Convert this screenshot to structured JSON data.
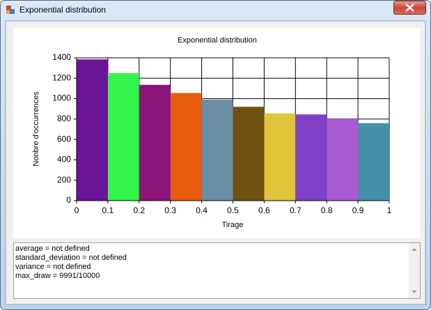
{
  "window": {
    "title": "Exponential distribution"
  },
  "chart_data": {
    "type": "histogram",
    "title": "Exponential distribution",
    "x_label": "Tirage",
    "y_label": "Nonbre d'occurrences",
    "bins": [
      0,
      0.1,
      0.2,
      0.3,
      0.4,
      0.5,
      0.6,
      0.7,
      0.8,
      0.9,
      1
    ],
    "values": [
      1385,
      1250,
      1135,
      1055,
      990,
      920,
      855,
      845,
      800,
      760
    ],
    "colors": [
      "#6a1597",
      "#33f54a",
      "#8b157a",
      "#e85c0f",
      "#6a8ea3",
      "#6e5210",
      "#e0c43a",
      "#8040c8",
      "#a95ad2",
      "#4590a8"
    ],
    "xlim": [
      0,
      1
    ],
    "ylim": [
      0,
      1400
    ],
    "xticks": [
      0,
      0.1,
      0.2,
      0.3,
      0.4,
      0.5,
      0.6,
      0.7,
      0.8,
      0.9,
      1
    ],
    "yticks": [
      0,
      200,
      400,
      600,
      800,
      1000,
      1200,
      1400
    ],
    "grid": true
  },
  "textbox": {
    "lines": [
      "average = not defined",
      "standard_deviation = not defined",
      "variance = not defined",
      "max_draw = 9991/10000"
    ]
  }
}
